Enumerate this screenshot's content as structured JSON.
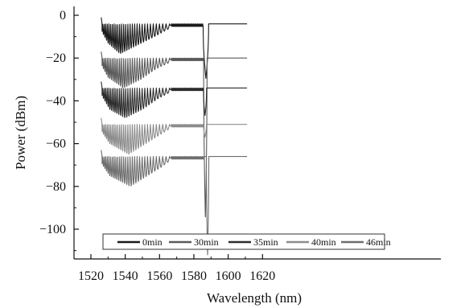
{
  "chart_data": {
    "type": "line",
    "title": "",
    "xlabel": "Wavelength (nm)",
    "ylabel": "Power (dBm)",
    "xlim": [
      1510,
      1620
    ],
    "ylim": [
      -115,
      5
    ],
    "grid": false,
    "legend_placement": "bottom",
    "x_ticks": [
      {
        "value": 1520,
        "label": "1520"
      },
      {
        "value": 1540,
        "label": "1540"
      },
      {
        "value": 1560,
        "label": "1560"
      },
      {
        "value": 1580,
        "label": "1580"
      },
      {
        "value": 1600,
        "label": "1600"
      },
      {
        "value": 1620,
        "label": "1620"
      }
    ],
    "y_ticks": [
      {
        "value": 0,
        "label": "0"
      },
      {
        "value": -20,
        "label": "−20"
      },
      {
        "value": -40,
        "label": "−40"
      },
      {
        "value": -60,
        "label": "−60"
      },
      {
        "value": -80,
        "label": "−80"
      },
      {
        "value": -100,
        "label": "−100"
      }
    ],
    "series": [
      {
        "name": "0min",
        "color": "#1a1a1a",
        "x_start": 1526,
        "x_end": 1611,
        "baseline": -4,
        "fringe_depth_points": [
          [
            1526,
            3
          ],
          [
            1530,
            9
          ],
          [
            1537,
            14
          ],
          [
            1547,
            10
          ],
          [
            1557,
            6
          ],
          [
            1566,
            2
          ],
          [
            1567,
            0
          ]
        ],
        "notch_center": 1587,
        "notch_min": -29.5,
        "notch_width": 1.6
      },
      {
        "name": "30min",
        "color": "#5a5a5a",
        "x_start": 1526,
        "x_end": 1611,
        "baseline": -20,
        "fringe_depth_points": [
          [
            1526,
            3
          ],
          [
            1530,
            9
          ],
          [
            1539,
            14
          ],
          [
            1549,
            10
          ],
          [
            1558,
            5
          ],
          [
            1566,
            2
          ],
          [
            1567,
            0
          ]
        ],
        "notch_center": 1586.7,
        "notch_min": -95,
        "notch_width": 1.0
      },
      {
        "name": "35min",
        "color": "#2c2c2c",
        "x_start": 1526,
        "x_end": 1611,
        "baseline": -34,
        "fringe_depth_points": [
          [
            1526,
            3
          ],
          [
            1531,
            10
          ],
          [
            1540,
            14
          ],
          [
            1550,
            10
          ],
          [
            1559,
            5
          ],
          [
            1566,
            2
          ],
          [
            1567,
            0
          ]
        ],
        "notch_center": 1586.5,
        "notch_min": -47,
        "notch_width": 0.9
      },
      {
        "name": "40min",
        "color": "#8c8c8c",
        "x_start": 1526,
        "x_end": 1611,
        "baseline": -51,
        "fringe_depth_points": [
          [
            1526,
            3
          ],
          [
            1531,
            9
          ],
          [
            1542,
            14
          ],
          [
            1552,
            9
          ],
          [
            1560,
            5
          ],
          [
            1566,
            2
          ],
          [
            1567,
            0
          ]
        ],
        "notch_center": 1586.5,
        "notch_min": -57,
        "notch_width": 0.8
      },
      {
        "name": "46min",
        "color": "#6e6e6e",
        "x_start": 1526,
        "x_end": 1611,
        "baseline": -66,
        "fringe_depth_points": [
          [
            1526,
            3
          ],
          [
            1531,
            9
          ],
          [
            1543,
            14
          ],
          [
            1553,
            9
          ],
          [
            1561,
            5
          ],
          [
            1566,
            2
          ],
          [
            1567,
            0
          ]
        ],
        "notch_center": 1588,
        "notch_min": -112,
        "notch_width": 0.7
      }
    ]
  }
}
